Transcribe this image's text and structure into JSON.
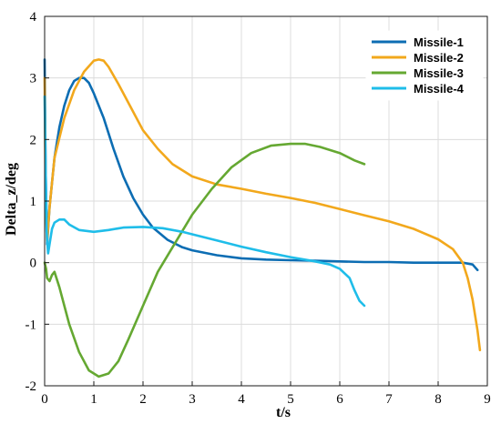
{
  "chart_data": {
    "type": "line",
    "title": "",
    "xlabel": "t/s",
    "ylabel": "Delta_z/deg",
    "xlim": [
      0,
      9
    ],
    "ylim": [
      -2,
      4
    ],
    "xticks": [
      0,
      1,
      2,
      3,
      4,
      5,
      6,
      7,
      8,
      9
    ],
    "yticks": [
      -2,
      -1,
      0,
      1,
      2,
      3,
      4
    ],
    "grid": true,
    "legend_position": "top-right",
    "series": [
      {
        "name": "Missile-1",
        "color": "#0c6db3",
        "x": [
          0.0,
          0.02,
          0.05,
          0.1,
          0.2,
          0.3,
          0.4,
          0.5,
          0.6,
          0.7,
          0.8,
          0.9,
          1.0,
          1.2,
          1.4,
          1.6,
          1.8,
          2.0,
          2.2,
          2.5,
          2.8,
          3.0,
          3.5,
          4.0,
          4.5,
          5.0,
          5.5,
          6.0,
          6.5,
          7.0,
          7.5,
          8.0,
          8.5,
          8.7,
          8.8
        ],
        "y": [
          3.3,
          1.5,
          0.3,
          0.9,
          1.7,
          2.2,
          2.55,
          2.8,
          2.95,
          3.0,
          3.0,
          2.92,
          2.75,
          2.35,
          1.85,
          1.4,
          1.05,
          0.78,
          0.57,
          0.37,
          0.25,
          0.2,
          0.12,
          0.07,
          0.05,
          0.04,
          0.03,
          0.02,
          0.01,
          0.01,
          0.0,
          0.0,
          0.0,
          -0.03,
          -0.12
        ]
      },
      {
        "name": "Missile-2",
        "color": "#f2a81c",
        "x": [
          0.0,
          0.02,
          0.05,
          0.1,
          0.2,
          0.4,
          0.6,
          0.8,
          1.0,
          1.1,
          1.2,
          1.3,
          1.5,
          1.8,
          2.0,
          2.3,
          2.6,
          3.0,
          3.5,
          4.0,
          4.5,
          5.0,
          5.5,
          6.0,
          6.5,
          7.0,
          7.5,
          8.0,
          8.3,
          8.5,
          8.6,
          8.7,
          8.8,
          8.85
        ],
        "y": [
          3.0,
          1.0,
          0.35,
          0.9,
          1.7,
          2.35,
          2.8,
          3.1,
          3.28,
          3.3,
          3.28,
          3.18,
          2.9,
          2.45,
          2.15,
          1.85,
          1.6,
          1.4,
          1.27,
          1.2,
          1.12,
          1.05,
          0.97,
          0.87,
          0.77,
          0.67,
          0.55,
          0.38,
          0.22,
          0.0,
          -0.25,
          -0.6,
          -1.1,
          -1.42
        ]
      },
      {
        "name": "Missile-3",
        "color": "#65a832",
        "x": [
          0.0,
          0.03,
          0.05,
          0.1,
          0.15,
          0.2,
          0.3,
          0.4,
          0.5,
          0.7,
          0.9,
          1.1,
          1.3,
          1.5,
          1.7,
          2.0,
          2.3,
          2.6,
          3.0,
          3.4,
          3.8,
          4.2,
          4.6,
          5.0,
          5.3,
          5.6,
          6.0,
          6.3,
          6.5
        ],
        "y": [
          0.0,
          -0.1,
          -0.25,
          -0.3,
          -0.2,
          -0.15,
          -0.4,
          -0.7,
          -1.0,
          -1.45,
          -1.75,
          -1.85,
          -1.8,
          -1.6,
          -1.25,
          -0.7,
          -0.15,
          0.25,
          0.78,
          1.2,
          1.55,
          1.78,
          1.9,
          1.93,
          1.93,
          1.88,
          1.78,
          1.66,
          1.6
        ]
      },
      {
        "name": "Missile-4",
        "color": "#1fbde9",
        "x": [
          0.0,
          0.02,
          0.04,
          0.07,
          0.1,
          0.15,
          0.2,
          0.3,
          0.4,
          0.5,
          0.7,
          1.0,
          1.3,
          1.6,
          2.0,
          2.4,
          2.8,
          3.0,
          3.5,
          4.0,
          4.5,
          5.0,
          5.5,
          5.8,
          6.0,
          6.2,
          6.3,
          6.4,
          6.5
        ],
        "y": [
          2.7,
          1.5,
          0.5,
          0.15,
          0.3,
          0.55,
          0.65,
          0.7,
          0.7,
          0.62,
          0.53,
          0.5,
          0.53,
          0.57,
          0.58,
          0.56,
          0.5,
          0.46,
          0.36,
          0.26,
          0.17,
          0.09,
          0.02,
          -0.03,
          -0.1,
          -0.25,
          -0.45,
          -0.62,
          -0.7
        ]
      }
    ]
  }
}
